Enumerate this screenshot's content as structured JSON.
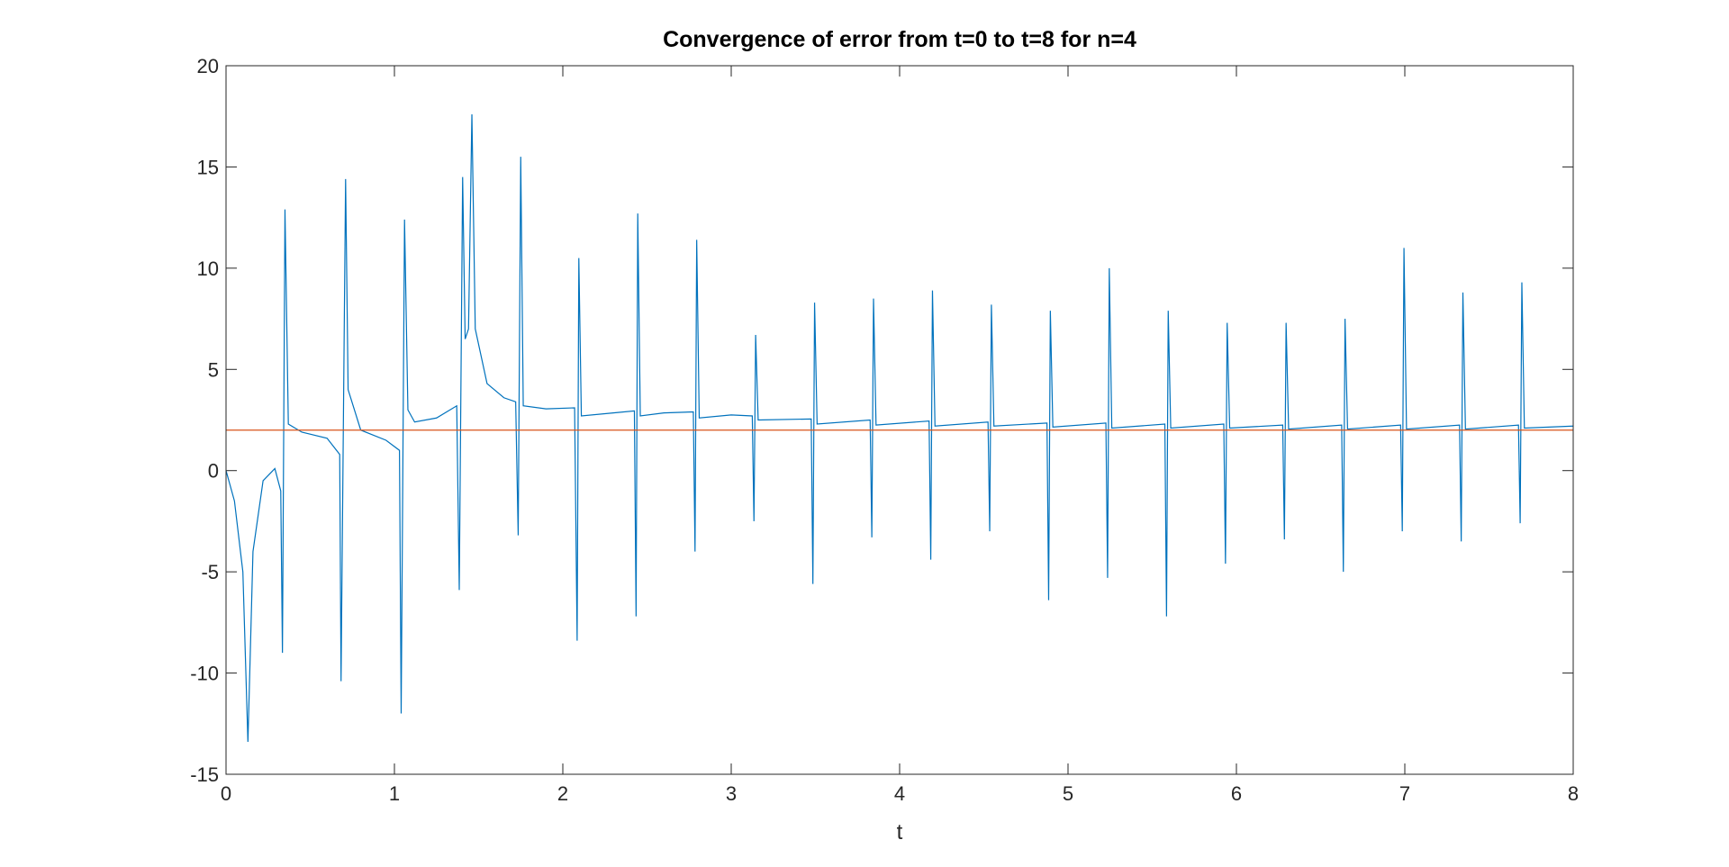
{
  "chart_data": {
    "type": "line",
    "title": "Convergence of error from t=0 to t=8 for n=4",
    "xlabel": "t",
    "xlim": [
      0,
      8
    ],
    "xticks": [
      0,
      1,
      2,
      3,
      4,
      5,
      6,
      7,
      8
    ],
    "ylim": [
      -15,
      20
    ],
    "yticks": [
      -15,
      -10,
      -5,
      0,
      5,
      10,
      15,
      20
    ],
    "grid": false,
    "series": [
      {
        "color": "#0072bd",
        "x": [
          0,
          0.05,
          0.1,
          0.13,
          0.16,
          0.22,
          0.29,
          0.325,
          0.335,
          0.35,
          0.37,
          0.45,
          0.6,
          0.675,
          0.683,
          0.71,
          0.725,
          0.8,
          0.95,
          1.03,
          1.04,
          1.06,
          1.08,
          1.12,
          1.25,
          1.37,
          1.385,
          1.405,
          1.42,
          1.44,
          1.46,
          1.48,
          1.55,
          1.65,
          1.72,
          1.735,
          1.75,
          1.765,
          1.9,
          2.07,
          2.085,
          2.095,
          2.11,
          2.3,
          2.425,
          2.435,
          2.445,
          2.46,
          2.6,
          2.775,
          2.785,
          2.795,
          2.81,
          3.0,
          3.125,
          3.135,
          3.145,
          3.16,
          3.475,
          3.485,
          3.495,
          3.51,
          3.825,
          3.835,
          3.845,
          3.86,
          4.175,
          4.185,
          4.195,
          4.21,
          4.525,
          4.535,
          4.545,
          4.56,
          4.875,
          4.885,
          4.895,
          4.91,
          5.225,
          5.235,
          5.245,
          5.26,
          5.575,
          5.585,
          5.595,
          5.61,
          5.925,
          5.935,
          5.945,
          5.96,
          6.275,
          6.285,
          6.295,
          6.31,
          6.625,
          6.635,
          6.645,
          6.66,
          6.975,
          6.985,
          6.995,
          7.01,
          7.325,
          7.335,
          7.345,
          7.36,
          7.675,
          7.685,
          7.695,
          7.71,
          8
        ],
        "values": [
          0,
          -1.5,
          -5,
          -13.4,
          -4,
          -0.5,
          0.1,
          -1,
          -9,
          12.9,
          2.3,
          1.9,
          1.6,
          0.8,
          -10.4,
          14.4,
          4,
          2,
          1.5,
          1.0,
          -12,
          12.4,
          3,
          2.4,
          2.6,
          3.2,
          -5.9,
          14.5,
          6.5,
          7,
          17.6,
          7,
          4.3,
          3.6,
          3.4,
          -3.2,
          15.5,
          3.2,
          3.05,
          3.1,
          -8.4,
          10.5,
          2.7,
          2.85,
          2.95,
          -7.2,
          12.7,
          2.7,
          2.85,
          2.9,
          -4.0,
          11.4,
          2.6,
          2.75,
          2.7,
          -2.5,
          6.7,
          2.5,
          2.55,
          -5.6,
          8.3,
          2.3,
          2.5,
          -3.3,
          8.5,
          2.25,
          2.45,
          -4.4,
          8.9,
          2.2,
          2.4,
          -3.0,
          8.2,
          2.2,
          2.35,
          -6.4,
          7.9,
          2.15,
          2.35,
          -5.3,
          10.0,
          2.1,
          2.3,
          -7.2,
          7.9,
          2.1,
          2.3,
          -4.6,
          7.3,
          2.1,
          2.25,
          -3.4,
          7.3,
          2.05,
          2.25,
          -5.0,
          7.5,
          2.05,
          2.25,
          -3.0,
          11.0,
          2.05,
          2.25,
          -3.5,
          8.8,
          2.05,
          2.25,
          -2.6,
          9.3,
          2.1,
          2.2
        ]
      },
      {
        "color": "#d95319",
        "x": [
          0,
          8
        ],
        "values": [
          2,
          2
        ]
      }
    ]
  }
}
